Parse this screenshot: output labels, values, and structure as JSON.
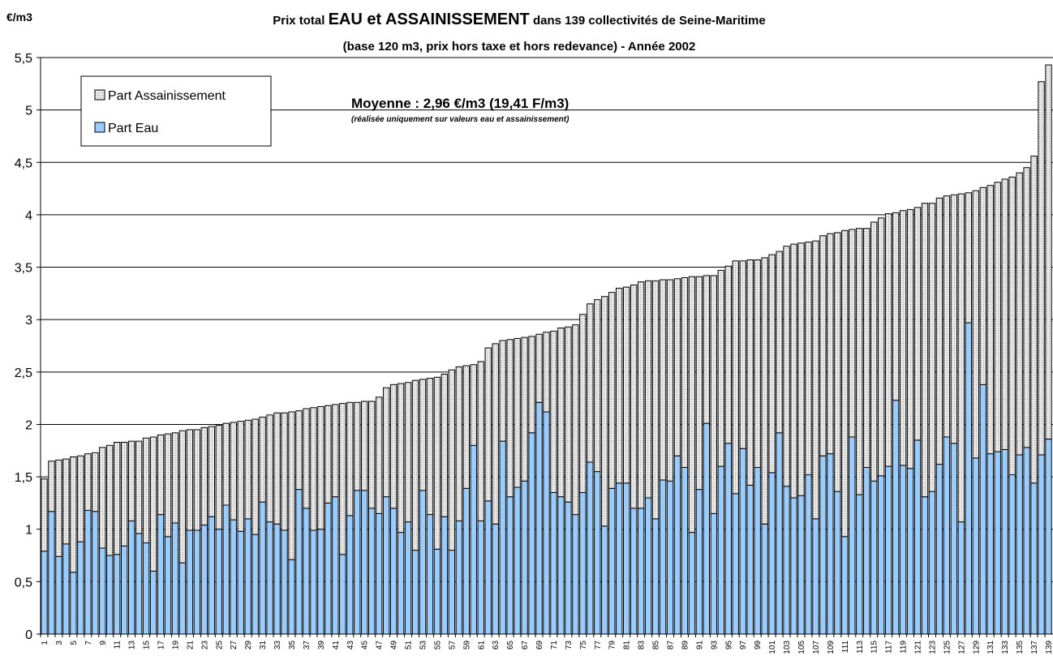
{
  "chart_data": {
    "type": "stacked_bar",
    "y_unit": "€/m3",
    "title": [
      "Prix total",
      "EAU et ASSAINISSEMENT",
      "dans 139 collectivités de Seine-Maritime"
    ],
    "subtitle": "(base 120 m3, prix hors taxe et hors redevance) - Année 2002",
    "annotation": "Moyenne : 2,96 €/m3 (19,41 F/m3)",
    "annotation_note": "(réalisée uniquement sur valeurs eau et assainissement)",
    "legend": "upper left",
    "grid": true,
    "ylim": [
      0,
      5.5
    ],
    "yticks": [
      0,
      {
        "value": 0.5,
        "label": "0,5"
      },
      1,
      {
        "value": 1.5,
        "label": "1,5"
      },
      2,
      {
        "value": 2.5,
        "label": "2,5"
      },
      3,
      {
        "value": 3.5,
        "label": "3,5"
      },
      4,
      {
        "value": 4.5,
        "label": "4,5"
      },
      5,
      {
        "value": 5.5,
        "label": "5,5"
      }
    ],
    "categories": [
      "1",
      null,
      "3",
      null,
      "5",
      null,
      "7",
      null,
      "9",
      null,
      "11",
      null,
      "13",
      null,
      "15",
      null,
      "17",
      null,
      "19",
      null,
      "21",
      null,
      "23",
      null,
      "25",
      null,
      "27",
      null,
      "29",
      null,
      "31",
      null,
      "33",
      null,
      "35",
      null,
      "37",
      null,
      "39",
      null,
      "41",
      null,
      "43",
      null,
      "45",
      null,
      "47",
      null,
      "49",
      null,
      "51",
      null,
      "53",
      null,
      "55",
      null,
      "57",
      null,
      "59",
      null,
      "61",
      null,
      "63",
      null,
      "65",
      null,
      "67",
      null,
      "69",
      null,
      "71",
      null,
      "73",
      null,
      "75",
      null,
      "77",
      null,
      "79",
      null,
      "81",
      null,
      "83",
      null,
      "85",
      null,
      "87",
      null,
      "89",
      null,
      "91",
      null,
      "93",
      null,
      "95",
      null,
      "97",
      null,
      "99",
      null,
      "101",
      null,
      "103",
      null,
      "105",
      null,
      "107",
      null,
      "109",
      null,
      "111",
      null,
      "113",
      null,
      "115",
      null,
      "117",
      null,
      "119",
      null,
      "121",
      null,
      "123",
      null,
      "125",
      null,
      "127",
      null,
      "129",
      null,
      "131",
      null,
      "133",
      null,
      "135",
      null,
      "137",
      null,
      "139"
    ],
    "series": [
      {
        "name": "Part Eau",
        "color": "#99ccff",
        "values": [
          0.79,
          1.17,
          0.74,
          0.86,
          0.59,
          0.88,
          1.18,
          1.17,
          0.82,
          0.75,
          0.76,
          0.84,
          1.08,
          0.96,
          0.87,
          0.6,
          1.14,
          0.93,
          1.06,
          0.68,
          0.99,
          0.99,
          1.04,
          1.12,
          1.0,
          1.23,
          1.09,
          0.98,
          1.1,
          0.95,
          1.26,
          1.07,
          1.05,
          0.99,
          0.71,
          1.38,
          1.2,
          0.99,
          1.0,
          1.25,
          1.31,
          0.76,
          1.13,
          1.37,
          1.37,
          1.2,
          1.15,
          1.31,
          1.2,
          0.97,
          1.07,
          0.8,
          1.37,
          1.14,
          0.81,
          1.12,
          0.8,
          1.08,
          1.39,
          1.8,
          1.08,
          1.27,
          1.05,
          1.84,
          1.31,
          1.4,
          1.46,
          1.92,
          2.21,
          2.12,
          1.35,
          1.31,
          1.26,
          1.14,
          1.35,
          1.64,
          1.55,
          1.03,
          1.39,
          1.44,
          1.44,
          1.2,
          1.2,
          1.3,
          1.1,
          1.47,
          1.46,
          1.7,
          1.59,
          0.97,
          1.38,
          2.01,
          1.15,
          1.6,
          1.82,
          1.34,
          1.77,
          1.42,
          1.59,
          1.05,
          1.54,
          1.92,
          1.41,
          1.3,
          1.32,
          1.52,
          1.1,
          1.7,
          1.72,
          1.36,
          0.93,
          1.88,
          1.33,
          1.59,
          1.46,
          1.51,
          1.6,
          2.23,
          1.61,
          1.58,
          1.85,
          1.31,
          1.36,
          1.62,
          1.88,
          1.82,
          1.07,
          2.97,
          1.68,
          2.38,
          1.72,
          1.74,
          1.76,
          1.52,
          1.71,
          1.78,
          1.44,
          1.71,
          1.86
        ]
      },
      {
        "name": "Part Assainissement",
        "color": "#f4f4f4",
        "values": [
          0.69,
          0.48,
          0.92,
          0.81,
          1.1,
          0.82,
          0.54,
          0.56,
          0.96,
          1.05,
          1.07,
          0.99,
          0.76,
          0.88,
          1.0,
          1.28,
          0.76,
          0.98,
          0.86,
          1.26,
          0.96,
          0.96,
          0.93,
          0.86,
          0.99,
          0.78,
          0.93,
          1.05,
          0.94,
          1.1,
          0.81,
          1.02,
          1.06,
          1.12,
          1.41,
          0.75,
          0.95,
          1.17,
          1.17,
          0.93,
          0.88,
          1.44,
          1.08,
          0.84,
          0.85,
          1.02,
          1.11,
          1.04,
          1.18,
          1.42,
          1.33,
          1.62,
          1.06,
          1.3,
          1.64,
          1.36,
          1.72,
          1.47,
          1.17,
          0.77,
          1.52,
          1.46,
          1.72,
          0.96,
          1.5,
          1.42,
          1.37,
          0.92,
          0.65,
          0.76,
          1.54,
          1.61,
          1.67,
          1.81,
          1.7,
          1.51,
          1.64,
          2.19,
          1.87,
          1.86,
          1.87,
          2.13,
          2.16,
          2.07,
          2.27,
          1.91,
          1.92,
          1.69,
          1.81,
          2.44,
          2.03,
          1.41,
          2.27,
          1.87,
          1.69,
          2.22,
          1.79,
          2.15,
          1.98,
          2.54,
          2.08,
          1.73,
          2.29,
          2.42,
          2.41,
          2.22,
          2.65,
          2.1,
          2.1,
          2.47,
          2.92,
          1.98,
          2.54,
          2.28,
          2.47,
          2.46,
          2.41,
          1.79,
          2.43,
          2.47,
          2.22,
          2.8,
          2.75,
          2.54,
          2.3,
          2.37,
          3.13,
          1.24,
          2.55,
          1.88,
          2.56,
          2.57,
          2.58,
          2.84,
          2.69,
          2.67,
          3.12,
          3.56,
          3.57
        ]
      }
    ]
  }
}
